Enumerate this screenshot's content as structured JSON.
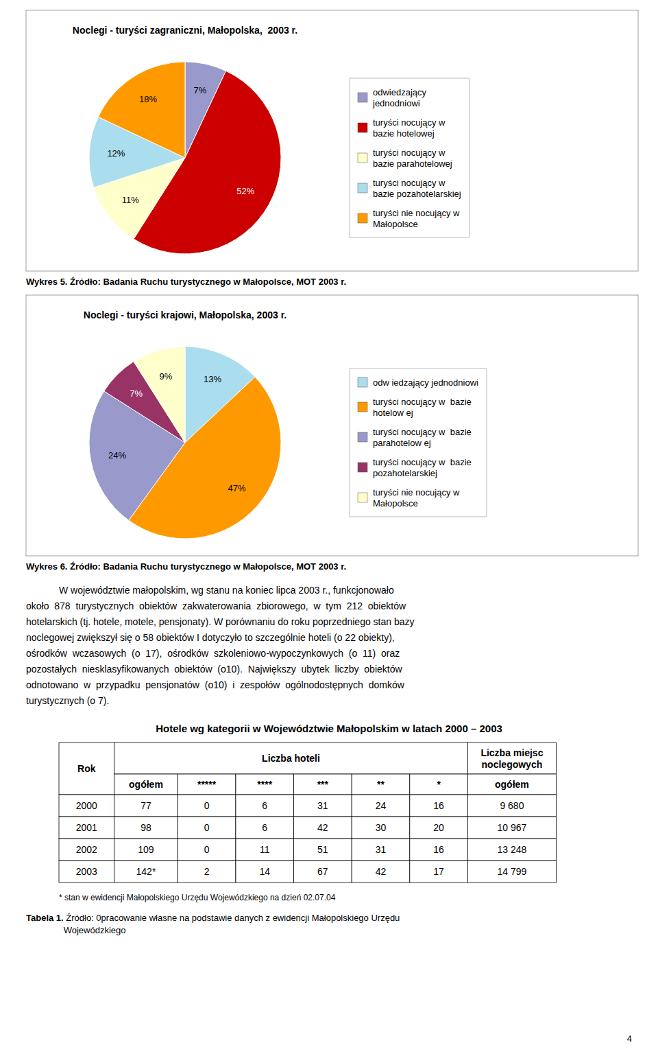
{
  "chart_data": [
    {
      "type": "pie",
      "title": "Noclegi - turyści zagraniczni, Małopolska,  2003 r.",
      "categories": [
        "odwiedzający\njednodniowi",
        "turyści nocujący w\nbazie hotelowej",
        "turyści nocujący w\nbazie parahotelowej",
        "turyści nocujący w\nbazie pozahotelarskiej",
        "turyści nie nocujący w\nMałopolsce"
      ],
      "values": [
        7,
        52,
        11,
        12,
        18
      ],
      "value_labels": [
        "7%",
        "52%",
        "11%",
        "12%",
        "18%"
      ],
      "colors": [
        "#9999CC",
        "#CC0000",
        "#FFFFCC",
        "#AADDEE",
        "#FF9900"
      ],
      "data_labels": true,
      "legend": "right"
    },
    {
      "type": "pie",
      "title": "Noclegi - turyści krajowi, Małopolska, 2003 r.",
      "categories": [
        "odw iedzający jednodniowi",
        "turyści nocujący w  bazie\nhotelow ej",
        "turyści nocujący w  bazie\nparahotelow ej",
        "turyści nocujący w  bazie\npozahotelarskiej",
        "turyści nie nocujący w\nMałopolsce"
      ],
      "values": [
        13,
        47,
        24,
        7,
        9
      ],
      "value_labels": [
        "13%",
        "47%",
        "24%",
        "7%",
        "9%"
      ],
      "colors": [
        "#AADDEE",
        "#FF9900",
        "#9999CC",
        "#993366",
        "#FFFFCC"
      ],
      "data_labels": true,
      "legend": "right"
    }
  ],
  "captions": [
    {
      "label": "Wykres 5.",
      "text": " Źródło: Badania Ruchu turystycznego w Małopolsce, MOT 2003 r."
    },
    {
      "label": "Wykres 6.",
      "text": " Źródło: Badania Ruchu turystycznego w Małopolsce, MOT 2003 r."
    }
  ],
  "body": [
    "W województwie małopolskim, wg stanu na koniec lipca 2003 r., funkcjonowało",
    "około  878  turystycznych  obiektów  zakwaterowania  zbiorowego,  w  tym  212  obiektów",
    "hotelarskich (tj. hotele, motele, pensjonaty). W porównaniu do roku poprzedniego stan bazy",
    "noclegowej zwiększył się o 58 obiektów I dotyczyło to szczególnie hoteli (o 22 obiekty),",
    "ośrodków  wczasowych  (o  17),  ośrodków  szkoleniowo-wypoczynkowych  (o  11)  oraz",
    "pozostałych  niesklasyfikowanych  obiektów  (o10).  Największy  ubytek  liczby  obiektów",
    "odnotowano  w  przypadku  pensjonatów  (o10)  i  zespołów  ogólnodostępnych  domków",
    "turystycznych (o 7)."
  ],
  "table": {
    "title": "Hotele wg kategorii w Województwie Małopolskim w latach 2000 – 2003",
    "header_groups": [
      "Rok",
      "Liczba hoteli",
      "Liczba miejsc\nnoclegowych"
    ],
    "columns": [
      "ogółem",
      "*****",
      "****",
      "***",
      "**",
      "*",
      "ogółem"
    ],
    "rows": [
      [
        "2000",
        "77",
        "0",
        "6",
        "31",
        "24",
        "16",
        "9 680"
      ],
      [
        "2001",
        "98",
        "0",
        "6",
        "42",
        "30",
        "20",
        "10 967"
      ],
      [
        "2002",
        "109",
        "0",
        "11",
        "51",
        "31",
        "16",
        "13 248"
      ],
      [
        "2003",
        "142*",
        "2",
        "14",
        "67",
        "42",
        "17",
        "14 799"
      ]
    ]
  },
  "footnote": "* stan w ewidencji Małopolskiego Urzędu Wojewódzkiego na dzień 02.07.04",
  "source": {
    "label": "Tabela 1.",
    "text": " Źródło: 0pracowanie własne na podstawie danych z ewidencji Małopolskiego Urzędu\nWojewódzkiego"
  },
  "page_number": "4"
}
